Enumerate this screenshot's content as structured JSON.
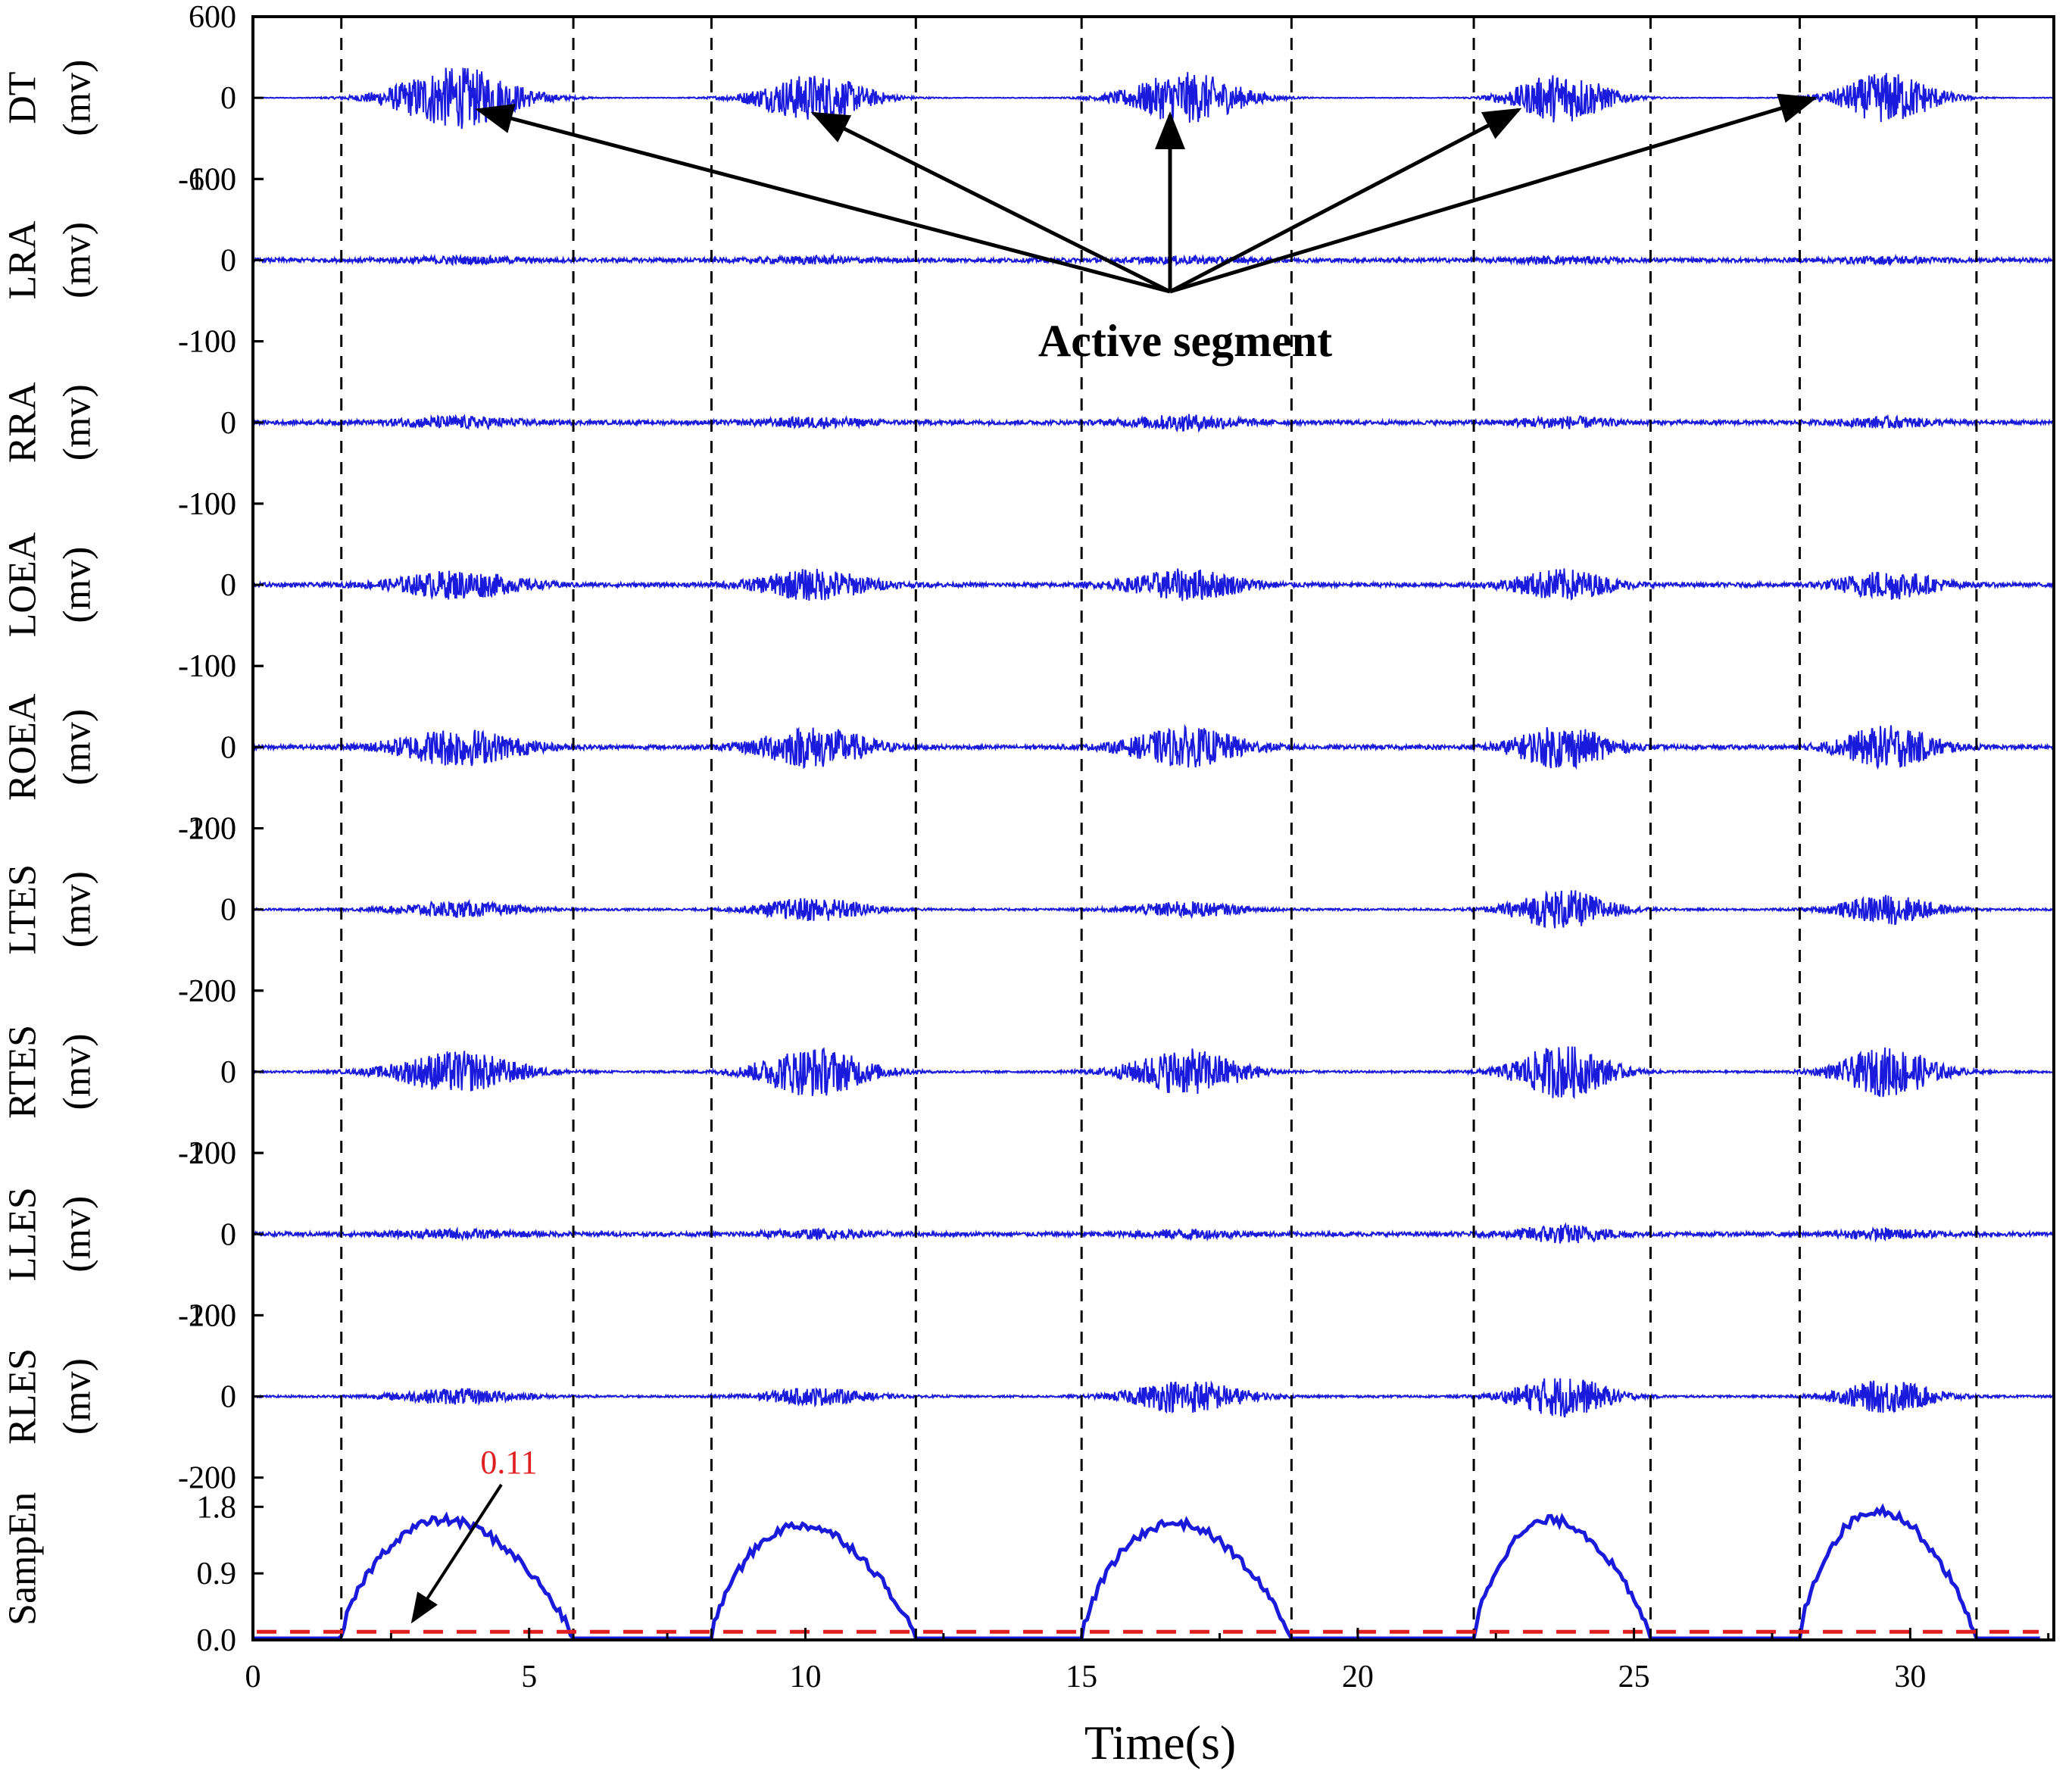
{
  "chart_data": {
    "type": "line",
    "xlabel": "Time(s)",
    "xlim": [
      0,
      32.6
    ],
    "xticks": [
      0,
      5,
      10,
      15,
      20,
      25,
      30
    ],
    "channels": [
      {
        "name": "DT",
        "unit": "(mv)",
        "ticks": [
          "600",
          "0",
          "-600"
        ],
        "range": 600,
        "envelope": [
          230,
          175,
          190,
          185,
          190
        ]
      },
      {
        "name": "LRA",
        "unit": "(mv)",
        "ticks": [
          "100",
          "0",
          "-100"
        ],
        "range": 100,
        "envelope": [
          3,
          3,
          3,
          3,
          3
        ]
      },
      {
        "name": "RRA",
        "unit": "(mv)",
        "ticks": [
          "100",
          "0",
          "-100"
        ],
        "range": 100,
        "envelope": [
          6,
          5,
          8,
          6,
          5
        ]
      },
      {
        "name": "LOEA",
        "unit": "(mv)",
        "ticks": [
          "100",
          "0",
          "-100"
        ],
        "range": 100,
        "envelope": [
          16,
          18,
          18,
          18,
          17
        ]
      },
      {
        "name": "ROEA",
        "unit": "(mv)",
        "ticks": [
          "100",
          "0",
          "-100"
        ],
        "range": 100,
        "envelope": [
          22,
          24,
          23,
          25,
          25
        ]
      },
      {
        "name": "LTES",
        "unit": "(mv)",
        "ticks": [
          "200",
          "0",
          "-200"
        ],
        "range": 200,
        "envelope": [
          18,
          28,
          18,
          48,
          35
        ]
      },
      {
        "name": "RTES",
        "unit": "(mv)",
        "ticks": [
          "200",
          "0",
          "-200"
        ],
        "range": 200,
        "envelope": [
          50,
          60,
          55,
          65,
          60
        ]
      },
      {
        "name": "LLES",
        "unit": "(mv)",
        "ticks": [
          "100",
          "0",
          "-100"
        ],
        "range": 100,
        "envelope": [
          4,
          4,
          4,
          10,
          5
        ]
      },
      {
        "name": "RLES",
        "unit": "(mv)",
        "ticks": [
          "200",
          "0",
          "-200"
        ],
        "range": 200,
        "envelope": [
          18,
          20,
          40,
          50,
          40
        ]
      },
      {
        "name": "SampEn",
        "unit": "",
        "ticks": [
          "1.8",
          "0.9",
          "0.0"
        ],
        "range": 2.2
      }
    ],
    "active_segments": [
      [
        1.6,
        5.8
      ],
      [
        8.3,
        12.0
      ],
      [
        15.0,
        18.8
      ],
      [
        22.1,
        25.3
      ],
      [
        28.0,
        31.2
      ]
    ],
    "sampen_peaks": [
      1.62,
      1.55,
      1.58,
      1.62,
      1.75
    ],
    "threshold": 0.11,
    "annotations": {
      "active_label": "Active segment",
      "threshold_label": "0.11"
    },
    "colors": {
      "signal": "#1a1adc",
      "threshold": "#e02020",
      "axis": "#000000"
    }
  }
}
